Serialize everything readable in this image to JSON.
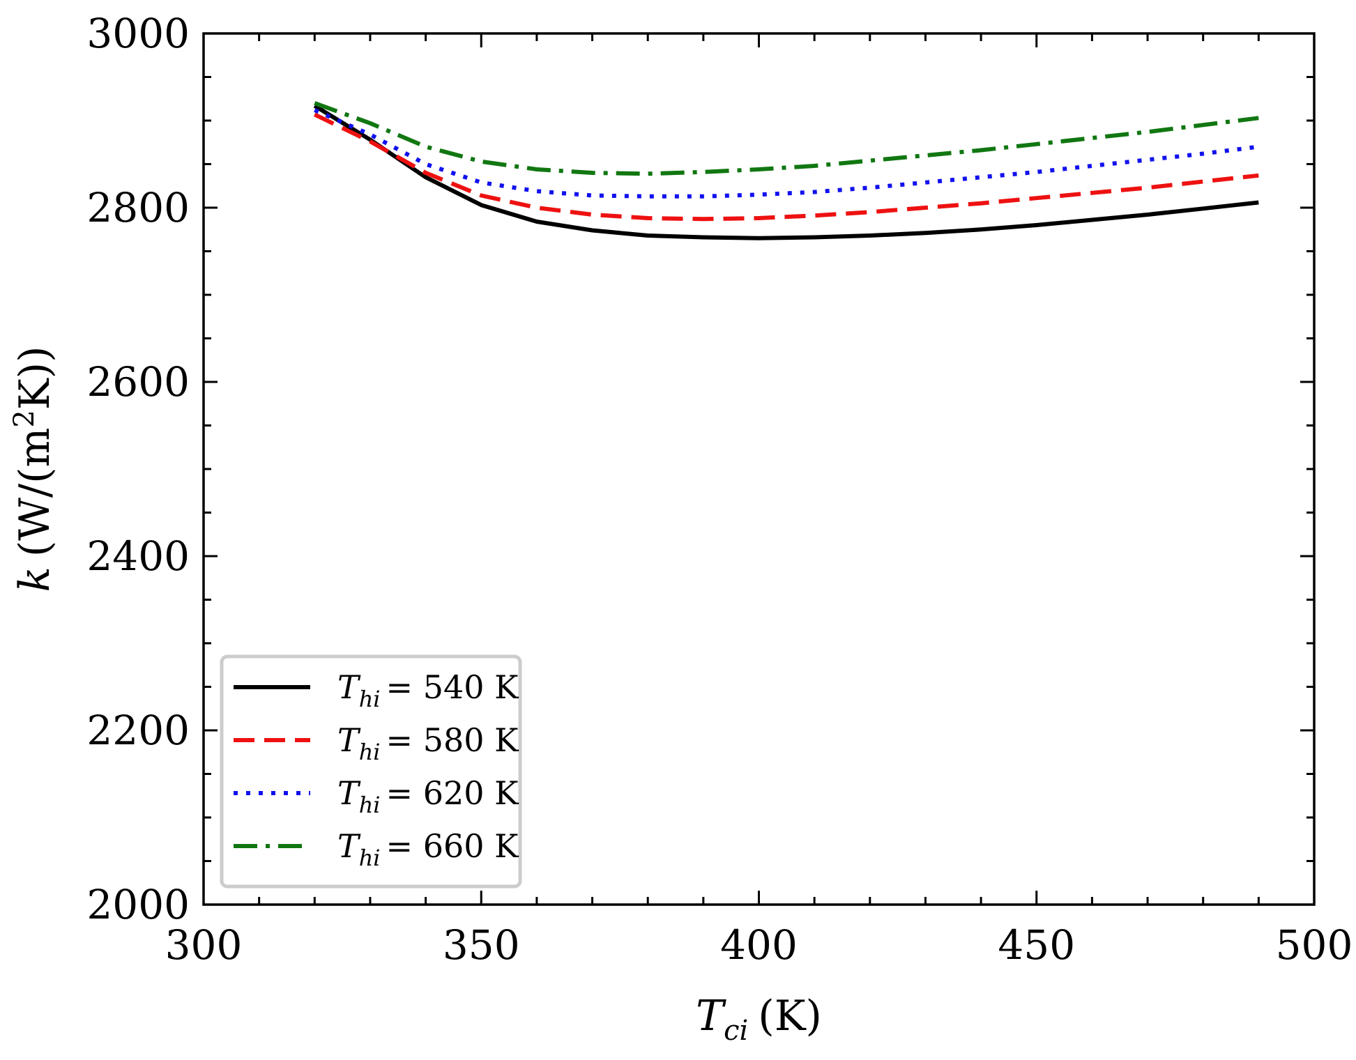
{
  "chart_data": {
    "type": "line",
    "title": "",
    "xlabel": {
      "symbol": "T",
      "subscript": "ci",
      "unit": "(K)"
    },
    "ylabel": {
      "symbol": "k",
      "unit_prefix": "(W/(m",
      "superscript": "2",
      "unit_suffix": "K))"
    },
    "xlim": [
      300,
      500
    ],
    "ylim": [
      2000,
      3000
    ],
    "x_ticks": [
      300,
      350,
      400,
      450,
      500
    ],
    "y_ticks": [
      2000,
      2200,
      2400,
      2600,
      2800,
      3000
    ],
    "x_minor_step": 10,
    "y_minor_step": 50,
    "grid": false,
    "legend_position": "lower-left",
    "x": [
      320,
      330,
      340,
      350,
      360,
      370,
      380,
      390,
      400,
      410,
      420,
      430,
      440,
      450,
      460,
      470,
      480,
      490
    ],
    "series": [
      {
        "name": "T_hi = 540 K",
        "label_symbol": "T",
        "label_subscript": "hi",
        "label_value": "= 540 K",
        "color": "#000000",
        "style": "solid",
        "values": [
          2917,
          2878,
          2835,
          2803,
          2784,
          2774,
          2768,
          2766,
          2765,
          2766,
          2768,
          2771,
          2775,
          2780,
          2786,
          2792,
          2799,
          2806
        ]
      },
      {
        "name": "T_hi = 580 K",
        "label_symbol": "T",
        "label_subscript": "hi",
        "label_value": "= 580 K",
        "color": "#ee1111",
        "style": "dashed",
        "values": [
          2907,
          2876,
          2840,
          2814,
          2800,
          2792,
          2788,
          2787,
          2788,
          2791,
          2795,
          2800,
          2805,
          2811,
          2817,
          2823,
          2830,
          2837
        ]
      },
      {
        "name": "T_hi = 620 K",
        "label_symbol": "T",
        "label_subscript": "hi",
        "label_value": "= 620 K",
        "color": "#1111ee",
        "style": "dotted",
        "values": [
          2912,
          2884,
          2850,
          2829,
          2819,
          2814,
          2813,
          2813,
          2815,
          2818,
          2823,
          2829,
          2835,
          2841,
          2848,
          2855,
          2862,
          2870
        ]
      },
      {
        "name": "T_hi = 660 K",
        "label_symbol": "T",
        "label_subscript": "hi",
        "label_value": "= 660 K",
        "color": "#117711",
        "style": "dashdot",
        "values": [
          2920,
          2897,
          2870,
          2853,
          2844,
          2840,
          2839,
          2841,
          2844,
          2848,
          2854,
          2860,
          2866,
          2873,
          2880,
          2887,
          2895,
          2903
        ]
      }
    ]
  }
}
